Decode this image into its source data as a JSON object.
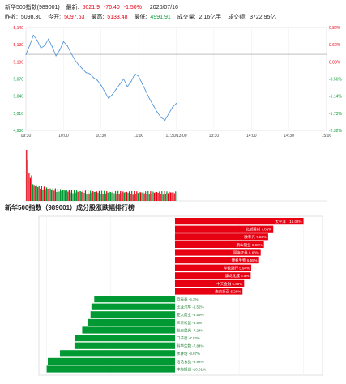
{
  "header": {
    "name": "新华500指数(989001)",
    "latest_label": "最新:",
    "latest": "5021.9",
    "change": "-76.40",
    "change_pct": "-1.50%",
    "date": "2020/07/16",
    "prev_close_label": "昨收:",
    "prev_close": "5098.30",
    "open_label": "今开:",
    "open": "5097.63",
    "high_label": "最高:",
    "high": "5133.48",
    "low_label": "最低:",
    "low": "4991.91",
    "volume_label": "成交量:",
    "volume": "2.16亿手",
    "amount_label": "成交额:",
    "amount": "3722.95亿"
  },
  "colors": {
    "up": "#e60012",
    "down": "#009933",
    "line": "#4a90d9"
  },
  "chart_data": [
    {
      "type": "line",
      "y_left_ticks": [
        "5,140",
        "5,130",
        "5,100",
        "5,070",
        "5,040",
        "5,010",
        "4,980"
      ],
      "y_right_ticks": [
        "0.82%",
        "0.62%",
        "0.03%",
        "-0.56%",
        "-1.14%",
        "-1.73%",
        "-2.32%"
      ],
      "x_ticks": [
        "09:30",
        "10:00",
        "10:30",
        "11:00",
        "11:30/13:00",
        "13:30",
        "14:00",
        "14:30",
        "15:00"
      ],
      "ylim": [
        4980,
        5140
      ],
      "baseline": 5098.3,
      "x": [
        0,
        3,
        6,
        9,
        12,
        15,
        18,
        21,
        24,
        27,
        30,
        33,
        36,
        39,
        42,
        45,
        48,
        51,
        54,
        57,
        60,
        63,
        66,
        69,
        72,
        75,
        78,
        81,
        84,
        87,
        90,
        93,
        96,
        99,
        102,
        105,
        108,
        111,
        114,
        117,
        120
      ],
      "values": [
        5098,
        5112,
        5128,
        5120,
        5108,
        5112,
        5122,
        5110,
        5096,
        5105,
        5118,
        5112,
        5100,
        5090,
        5082,
        5076,
        5070,
        5068,
        5062,
        5058,
        5050,
        5040,
        5030,
        5036,
        5044,
        5052,
        5060,
        5048,
        5056,
        5068,
        5064,
        5052,
        5040,
        5028,
        5018,
        5008,
        5000,
        4996,
        5006,
        5016,
        5022
      ]
    },
    {
      "type": "bar",
      "title": "新华500指数（989001）成分股涨跌幅排行榜",
      "categories": [
        "太平洋",
        "北新建材",
        "欧菲光",
        "鹏山铝业",
        "国海证券",
        "健帆生物",
        "华致酒行",
        "康龙化成",
        "中天金融",
        "南京新百",
        "欣泰泰",
        "比亚汽车",
        "亚太药业",
        "三只松鼠",
        "航天晨光",
        "口子窖",
        "科华生物",
        "水井坊",
        "洽洽食品",
        "中际旭创"
      ],
      "values": [
        10.02,
        7.66,
        7.26,
        6.93,
        6.68,
        6.55,
        5.94,
        5.9,
        5.39,
        5.26,
        -6.3,
        -6.52,
        -6.59,
        -6.8,
        -7.24,
        -7.82,
        -7.84,
        -8.97,
        -9.92,
        -10.01
      ],
      "labels": [
        "太平洋　10.02%",
        "北新建材 7.66%",
        "欧菲光 7.26%",
        "鹏山铝业 6.93%",
        "国海证券 6.68%",
        "健帆生物 6.55%",
        "华致酒行 5.94%",
        "康龙化成 5.9%",
        "中天金融 5.39%",
        "南京新百 5.26%",
        "欣泰泰 -6.3%",
        "比亚汽车 -6.52%",
        "亚太药业 -6.59%",
        "三只松鼠 -6.8%",
        "航天晨光 -7.24%",
        "口子窖 -7.82%",
        "科华生物 -7.84%",
        "水井坊 -8.97%",
        "洽洽食品 -9.92%",
        "中际旭创 -10.01%"
      ]
    }
  ]
}
